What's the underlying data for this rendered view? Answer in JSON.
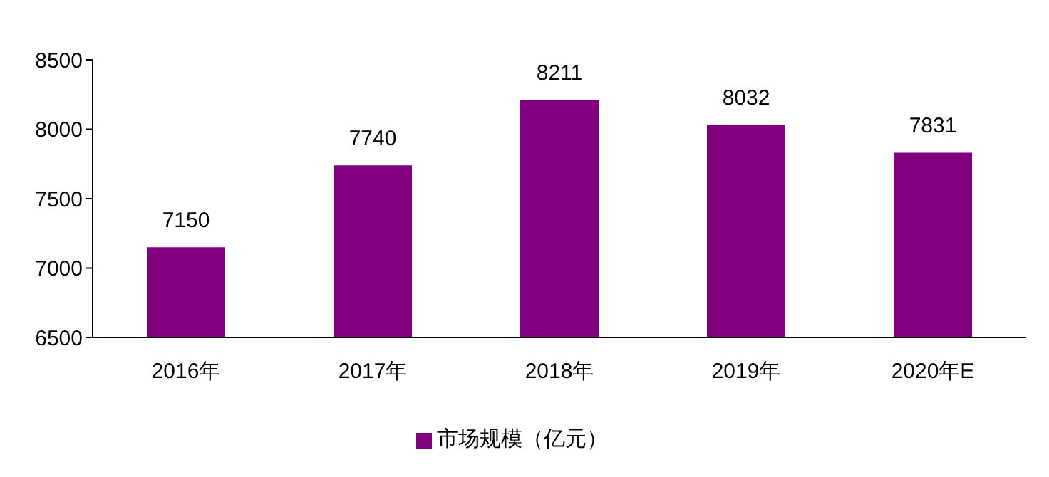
{
  "chart_data": {
    "type": "bar",
    "categories": [
      "2016年",
      "2017年",
      "2018年",
      "2019年",
      "2020年E"
    ],
    "series": [
      {
        "name": "市场规模（亿元）",
        "color": "#800080",
        "values": [
          7150,
          7740,
          8211,
          8032,
          7831
        ]
      }
    ],
    "ylim": [
      6500,
      8500
    ],
    "yticks": [
      6500,
      7000,
      7500,
      8000,
      8500
    ],
    "data_labels": true,
    "legend": "bottom"
  }
}
